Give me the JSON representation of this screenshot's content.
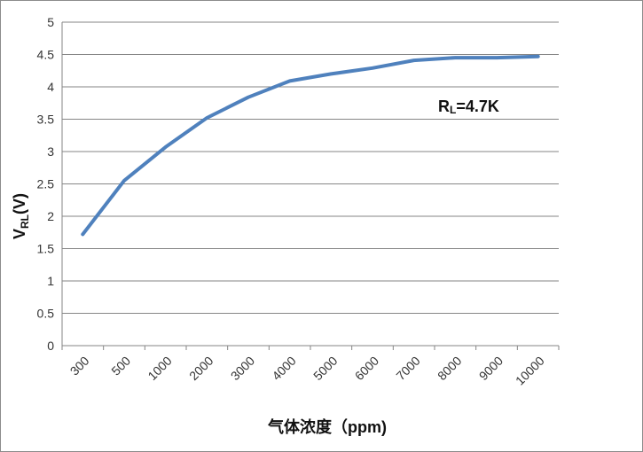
{
  "chart_data": {
    "type": "line",
    "categories": [
      "300",
      "500",
      "1000",
      "2000",
      "3000",
      "4000",
      "5000",
      "6000",
      "7000",
      "8000",
      "9000",
      "10000"
    ],
    "series": [
      {
        "values": [
          1.72,
          2.55,
          3.07,
          3.52,
          3.84,
          4.09,
          4.2,
          4.29,
          4.41,
          4.45,
          4.45,
          4.47
        ]
      }
    ],
    "y_ticks": [
      "0",
      "0.5",
      "1",
      "1.5",
      "2",
      "2.5",
      "3",
      "3.5",
      "4",
      "4.5",
      "5"
    ],
    "ylim": [
      0,
      5
    ],
    "ylabel": "V",
    "ylabel_subscript": "RL",
    "ylabel_unit": "(V)",
    "xlabel": "气体浓度（ppm)",
    "annotation": {
      "prefix": "R",
      "subscript": "L",
      "value": "=4.7K"
    },
    "line_color": "#4f81bd",
    "grid": true,
    "legend": "none"
  }
}
